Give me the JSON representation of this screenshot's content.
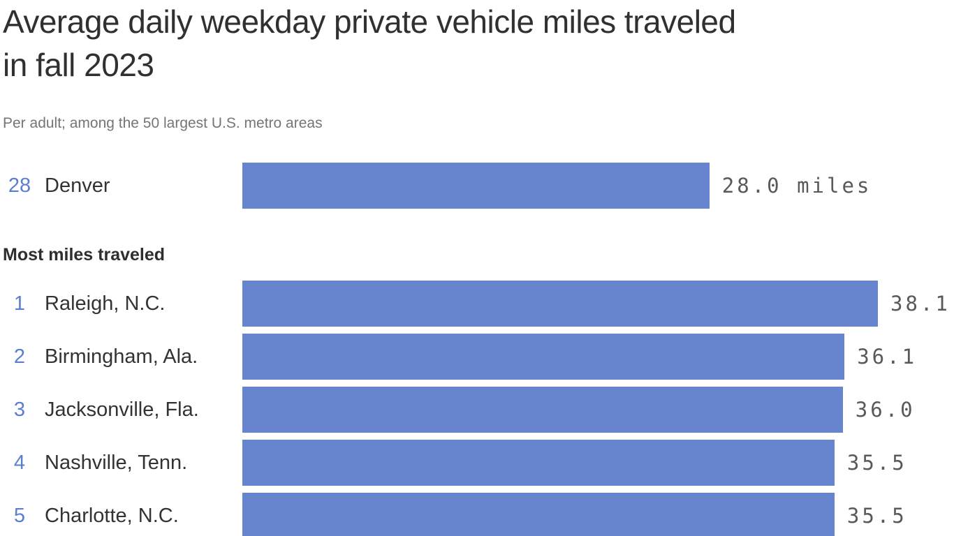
{
  "chart_data": {
    "type": "bar",
    "orientation": "horizontal",
    "display_title": "Average daily weekday private vehicle miles traveled\nin fall 2023",
    "title": "Average daily weekday private vehicle miles traveled in fall 2023",
    "subtitle": "Per adult; among the 50 largest U.S. metro areas",
    "unit": "miles",
    "xlim": [
      0,
      38.1
    ],
    "grid": false,
    "legend": false,
    "highlight": {
      "rank": "28",
      "city": "Denver",
      "value": 28.0,
      "value_label": "28.0 miles"
    },
    "section": {
      "header": "Most miles traveled",
      "rows": [
        {
          "rank": "1",
          "city": "Raleigh, N.C.",
          "value": 38.1,
          "value_label": "38.1"
        },
        {
          "rank": "2",
          "city": "Birmingham, Ala.",
          "value": 36.1,
          "value_label": "36.1"
        },
        {
          "rank": "3",
          "city": "Jacksonville, Fla.",
          "value": 36.0,
          "value_label": "36.0"
        },
        {
          "rank": "4",
          "city": "Nashville, Tenn.",
          "value": 35.5,
          "value_label": "35.5"
        },
        {
          "rank": "5",
          "city": "Charlotte, N.C.",
          "value": 35.5,
          "value_label": "35.5"
        }
      ]
    },
    "colors": {
      "bar": "#6784ce",
      "rank_label": "#5b7ed2",
      "value_label": "#58595b",
      "title": "#303030",
      "subtitle": "#757575"
    }
  }
}
